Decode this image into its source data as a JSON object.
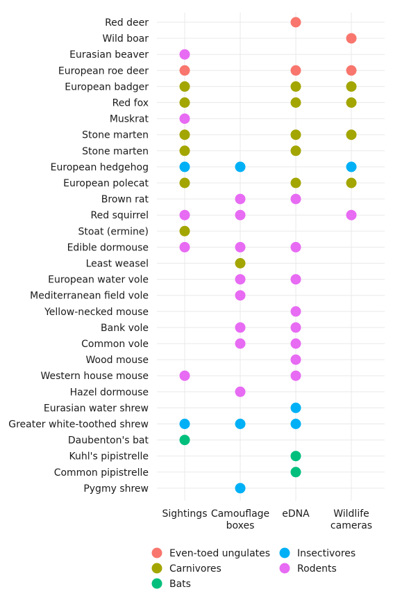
{
  "chart_data": {
    "type": "scatter",
    "title": "",
    "xlabel": "",
    "ylabel": "",
    "grid": true,
    "legend_position": "bottom",
    "categories_x": [
      "Sightings",
      "Camouflage boxes",
      "eDNA",
      "Wildlife cameras"
    ],
    "x_tick_labels": [
      [
        "Sightings"
      ],
      [
        "Camouflage",
        "boxes"
      ],
      [
        "eDNA"
      ],
      [
        "Wildlife",
        "cameras"
      ]
    ],
    "categories_y": [
      "Red deer",
      "Wild boar",
      "Eurasian beaver",
      "European roe deer",
      "European badger",
      "Red fox",
      "Muskrat",
      "Stone marten",
      "Stone marten",
      "European hedgehog",
      "European polecat",
      "Brown rat",
      "Red squirrel",
      "Stoat (ermine)",
      "Edible dormouse",
      "Least weasel",
      "European water vole",
      "Mediterranean field vole",
      "Yellow-necked mouse",
      "Bank vole",
      "Common vole",
      "Wood mouse",
      "Western house mouse",
      "Hazel dormouse",
      "Eurasian water shrew",
      "Greater white-toothed shrew",
      "Daubenton's bat",
      "Kuhl's pipistrelle",
      "Common pipistrelle",
      "Pygmy shrew"
    ],
    "groups": [
      {
        "name": "Even-toed ungulates",
        "color": "#F8766D"
      },
      {
        "name": "Carnivores",
        "color": "#A3A500"
      },
      {
        "name": "Bats",
        "color": "#00BF7D"
      },
      {
        "name": "Insectivores",
        "color": "#00B0F6"
      },
      {
        "name": "Rodents",
        "color": "#E76BF3"
      }
    ],
    "legend_layout": [
      [
        "Even-toed ungulates",
        "Insectivores"
      ],
      [
        "Carnivores",
        "Rodents"
      ],
      [
        "Bats"
      ]
    ],
    "points": [
      {
        "y": "Red deer",
        "x": "eDNA",
        "group": "Even-toed ungulates"
      },
      {
        "y": "Wild boar",
        "x": "Wildlife cameras",
        "group": "Even-toed ungulates"
      },
      {
        "y": "Eurasian beaver",
        "x": "Sightings",
        "group": "Rodents"
      },
      {
        "y": "European roe deer",
        "x": "Sightings",
        "group": "Even-toed ungulates"
      },
      {
        "y": "European roe deer",
        "x": "eDNA",
        "group": "Even-toed ungulates"
      },
      {
        "y": "European roe deer",
        "x": "Wildlife cameras",
        "group": "Even-toed ungulates"
      },
      {
        "y": "European badger",
        "x": "Sightings",
        "group": "Carnivores"
      },
      {
        "y": "European badger",
        "x": "eDNA",
        "group": "Carnivores"
      },
      {
        "y": "European badger",
        "x": "Wildlife cameras",
        "group": "Carnivores"
      },
      {
        "y": "Red fox",
        "x": "Sightings",
        "group": "Carnivores"
      },
      {
        "y": "Red fox",
        "x": "eDNA",
        "group": "Carnivores"
      },
      {
        "y": "Red fox",
        "x": "Wildlife cameras",
        "group": "Carnivores"
      },
      {
        "y": "Muskrat",
        "x": "Sightings",
        "group": "Rodents"
      },
      {
        "y": "Stone marten",
        "row": 7,
        "x": "Sightings",
        "group": "Carnivores"
      },
      {
        "y": "Stone marten",
        "row": 7,
        "x": "eDNA",
        "group": "Carnivores"
      },
      {
        "y": "Stone marten",
        "row": 7,
        "x": "Wildlife cameras",
        "group": "Carnivores"
      },
      {
        "y": "Stone marten",
        "row": 8,
        "x": "Sightings",
        "group": "Carnivores"
      },
      {
        "y": "Stone marten",
        "row": 8,
        "x": "eDNA",
        "group": "Carnivores"
      },
      {
        "y": "European hedgehog",
        "x": "Sightings",
        "group": "Insectivores"
      },
      {
        "y": "European hedgehog",
        "x": "Camouflage boxes",
        "group": "Insectivores"
      },
      {
        "y": "European hedgehog",
        "x": "Wildlife cameras",
        "group": "Insectivores"
      },
      {
        "y": "European polecat",
        "x": "Sightings",
        "group": "Carnivores"
      },
      {
        "y": "European polecat",
        "x": "eDNA",
        "group": "Carnivores"
      },
      {
        "y": "European polecat",
        "x": "Wildlife cameras",
        "group": "Carnivores"
      },
      {
        "y": "Brown rat",
        "x": "Camouflage boxes",
        "group": "Rodents"
      },
      {
        "y": "Brown rat",
        "x": "eDNA",
        "group": "Rodents"
      },
      {
        "y": "Red squirrel",
        "x": "Sightings",
        "group": "Rodents"
      },
      {
        "y": "Red squirrel",
        "x": "Camouflage boxes",
        "group": "Rodents"
      },
      {
        "y": "Red squirrel",
        "x": "Wildlife cameras",
        "group": "Rodents"
      },
      {
        "y": "Stoat (ermine)",
        "x": "Sightings",
        "group": "Carnivores"
      },
      {
        "y": "Edible dormouse",
        "x": "Sightings",
        "group": "Rodents"
      },
      {
        "y": "Edible dormouse",
        "x": "Camouflage boxes",
        "group": "Rodents"
      },
      {
        "y": "Edible dormouse",
        "x": "eDNA",
        "group": "Rodents"
      },
      {
        "y": "Least weasel",
        "x": "Camouflage boxes",
        "group": "Carnivores"
      },
      {
        "y": "European water vole",
        "x": "Camouflage boxes",
        "group": "Rodents"
      },
      {
        "y": "European water vole",
        "x": "eDNA",
        "group": "Rodents"
      },
      {
        "y": "Mediterranean field vole",
        "x": "Camouflage boxes",
        "group": "Rodents"
      },
      {
        "y": "Yellow-necked mouse",
        "x": "eDNA",
        "group": "Rodents"
      },
      {
        "y": "Bank vole",
        "x": "Camouflage boxes",
        "group": "Rodents"
      },
      {
        "y": "Bank vole",
        "x": "eDNA",
        "group": "Rodents"
      },
      {
        "y": "Common vole",
        "x": "Camouflage boxes",
        "group": "Rodents"
      },
      {
        "y": "Common vole",
        "x": "eDNA",
        "group": "Rodents"
      },
      {
        "y": "Wood mouse",
        "x": "eDNA",
        "group": "Rodents"
      },
      {
        "y": "Western house mouse",
        "x": "Sightings",
        "group": "Rodents"
      },
      {
        "y": "Western house mouse",
        "x": "eDNA",
        "group": "Rodents"
      },
      {
        "y": "Hazel dormouse",
        "x": "Camouflage boxes",
        "group": "Rodents"
      },
      {
        "y": "Eurasian water shrew",
        "x": "eDNA",
        "group": "Insectivores"
      },
      {
        "y": "Greater white-toothed shrew",
        "x": "Sightings",
        "group": "Insectivores"
      },
      {
        "y": "Greater white-toothed shrew",
        "x": "Camouflage boxes",
        "group": "Insectivores"
      },
      {
        "y": "Greater white-toothed shrew",
        "x": "eDNA",
        "group": "Insectivores"
      },
      {
        "y": "Daubenton's bat",
        "x": "Sightings",
        "group": "Bats"
      },
      {
        "y": "Kuhl's pipistrelle",
        "x": "eDNA",
        "group": "Bats"
      },
      {
        "y": "Common pipistrelle",
        "x": "eDNA",
        "group": "Bats"
      },
      {
        "y": "Pygmy shrew",
        "x": "Camouflage boxes",
        "group": "Insectivores"
      }
    ]
  }
}
